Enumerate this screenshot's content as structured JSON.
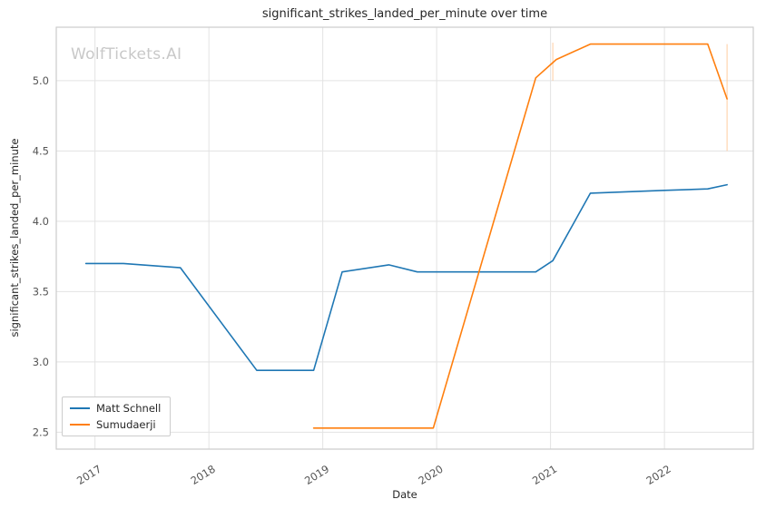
{
  "watermark": "WolfTickets.AI",
  "chart_data": {
    "type": "line",
    "title": "significant_strikes_landed_per_minute over time",
    "xlabel": "Date",
    "ylabel": "significant_strikes_landed_per_minute",
    "grid": true,
    "legend_position": "lower left",
    "xlim": [
      2016.66,
      2022.78
    ],
    "ylim": [
      2.38,
      5.38
    ],
    "x_ticks": [
      2017,
      2018,
      2019,
      2020,
      2021,
      2022
    ],
    "x_tick_labels": [
      "2017",
      "2018",
      "2019",
      "2020",
      "2021",
      "2022"
    ],
    "y_ticks": [
      2.5,
      3.0,
      3.5,
      4.0,
      4.5,
      5.0
    ],
    "y_tick_labels": [
      "2.5",
      "3.0",
      "3.5",
      "4.0",
      "4.5",
      "5.0"
    ],
    "series": [
      {
        "name": "Matt Schnell",
        "color": "#1f77b4",
        "points": [
          [
            2016.92,
            3.7
          ],
          [
            2017.25,
            3.7
          ],
          [
            2017.75,
            3.67
          ],
          [
            2018.42,
            2.94
          ],
          [
            2018.92,
            2.94
          ],
          [
            2019.17,
            3.64
          ],
          [
            2019.58,
            3.69
          ],
          [
            2019.83,
            3.64
          ],
          [
            2020.4,
            3.64
          ],
          [
            2020.87,
            3.64
          ],
          [
            2021.02,
            3.72
          ],
          [
            2021.35,
            4.2
          ],
          [
            2022.0,
            4.22
          ],
          [
            2022.38,
            4.23
          ],
          [
            2022.55,
            4.26
          ]
        ]
      },
      {
        "name": "Sumudaerji",
        "color": "#ff7f0e",
        "points": [
          [
            2018.92,
            2.53
          ],
          [
            2019.5,
            2.53
          ],
          [
            2019.97,
            2.53
          ],
          [
            2020.87,
            5.02
          ],
          [
            2021.05,
            5.15
          ],
          [
            2021.35,
            5.26
          ],
          [
            2022.0,
            5.26
          ],
          [
            2022.38,
            5.26
          ],
          [
            2022.55,
            4.87
          ]
        ]
      }
    ],
    "error_bars": [
      {
        "x": 2021.02,
        "y1": 5.0,
        "y2": 5.27,
        "color": "#ffbf86"
      },
      {
        "x": 2022.55,
        "y1": 4.5,
        "y2": 5.26,
        "color": "#ffbf86"
      }
    ],
    "style": {
      "grid_color": "#e3e3e3",
      "spine_color": "#cccccc",
      "tick_label_color": "#555555"
    }
  }
}
